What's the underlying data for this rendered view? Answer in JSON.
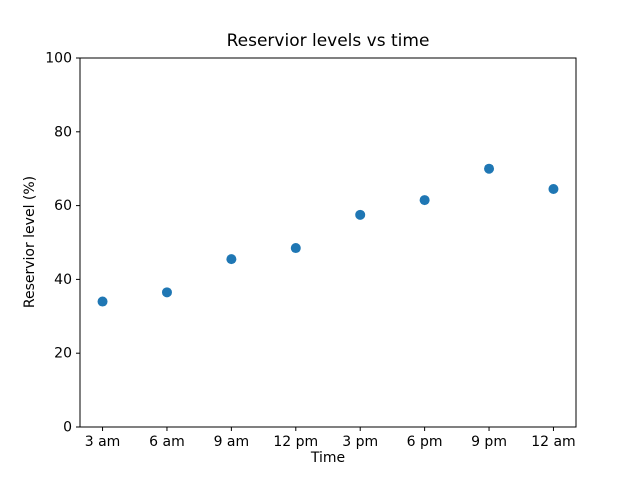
{
  "chart_data": {
    "type": "scatter",
    "title": "Reservior levels vs time",
    "xlabel": "Time",
    "ylabel": "Reservior level (%)",
    "categories": [
      "3 am",
      "6 am",
      "9 am",
      "12 pm",
      "3 pm",
      "6 pm",
      "9 pm",
      "12 am"
    ],
    "values": [
      34,
      36.5,
      45.5,
      48.5,
      57.5,
      61.5,
      70,
      64.5
    ],
    "ylim": [
      0,
      100
    ],
    "yticks": [
      0,
      20,
      40,
      60,
      80,
      100
    ],
    "marker_color": "#1f77b4",
    "axis_color": "#000000",
    "text_color": "#000000",
    "background": "#ffffff",
    "grid": false,
    "legend_position": "none"
  }
}
